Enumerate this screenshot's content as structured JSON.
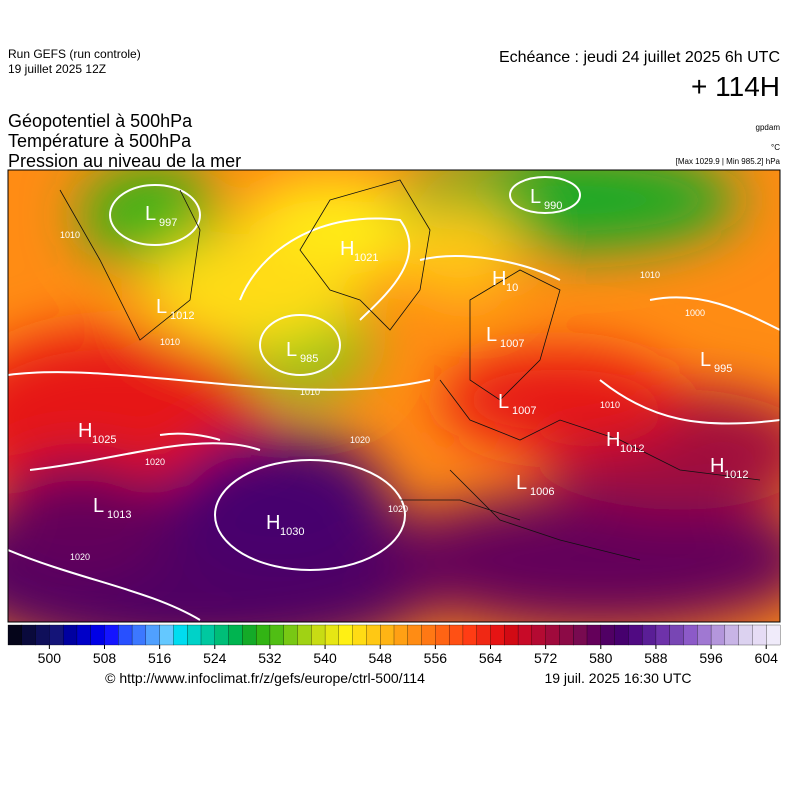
{
  "header": {
    "run": "Run GEFS (run controle)",
    "run_date": "19 juillet 2025 12Z",
    "echeance": "Echéance : jeudi 24 juillet 2025 6h UTC",
    "lead": "+ 114H",
    "titles": [
      "Géopotentiel à 500hPa",
      "Température à 500hPa",
      "Pression au niveau de la mer"
    ],
    "unit_geo": "gpdam",
    "unit_temp": "°C",
    "pressure_range": "[Max 1029.9 | Min 985.2] hPa"
  },
  "map": {
    "centers": [
      {
        "letter": "L",
        "value": 997
      },
      {
        "letter": "H",
        "value": 1021
      },
      {
        "letter": "L",
        "value": 1012
      },
      {
        "letter": "L",
        "value": 985
      },
      {
        "letter": "L",
        "value": 990
      },
      {
        "letter": "H",
        "value": 10
      },
      {
        "letter": "L",
        "value": 1007
      },
      {
        "letter": "L",
        "value": 1007
      },
      {
        "letter": "H",
        "value": 1025
      },
      {
        "letter": "L",
        "value": 1013
      },
      {
        "letter": "H",
        "value": 1030
      },
      {
        "letter": "L",
        "value": 1006
      },
      {
        "letter": "H",
        "value": 1012
      },
      {
        "letter": "H",
        "value": 1012
      },
      {
        "letter": "L",
        "value": 995
      }
    ],
    "isobar_labels": [
      1010,
      1010,
      1010,
      1020,
      1020,
      1020,
      1020,
      1000,
      1010,
      1010
    ]
  },
  "colorbar": {
    "lim": [
      494,
      606
    ],
    "ticks": [
      500,
      508,
      516,
      524,
      532,
      540,
      548,
      556,
      564,
      572,
      580,
      588,
      596,
      604
    ],
    "colors": [
      "#05051a",
      "#0a0a3c",
      "#0f0f5a",
      "#141478",
      "#0000a0",
      "#0000c8",
      "#0000e6",
      "#1414ff",
      "#2850ff",
      "#3c78ff",
      "#50a0ff",
      "#64c8ff",
      "#00dcf0",
      "#00d2c8",
      "#00c8a0",
      "#00be78",
      "#00b450",
      "#14aa28",
      "#32b414",
      "#50be14",
      "#78c814",
      "#a0d214",
      "#c8dc14",
      "#e6e614",
      "#fff014",
      "#ffdc14",
      "#ffc814",
      "#ffb414",
      "#ffa014",
      "#ff8c14",
      "#ff7814",
      "#ff6414",
      "#ff5014",
      "#ff3c14",
      "#f02814",
      "#e61414",
      "#d20a14",
      "#c80a28",
      "#b40a32",
      "#a00a3c",
      "#8c0a46",
      "#780a50",
      "#64005a",
      "#500064",
      "#46006e",
      "#500a82",
      "#5a1e96",
      "#6e32aa",
      "#7846b4",
      "#8c5ac8",
      "#a078d2",
      "#b496dc",
      "#c8b4e6",
      "#dcd2f0",
      "#e6dcf5",
      "#f0ebfa"
    ]
  },
  "footer": {
    "url": "© http://www.infoclimat.fr/z/gefs/europe/ctrl-500/114",
    "issued": "19 juil. 2025 16:30 UTC"
  }
}
